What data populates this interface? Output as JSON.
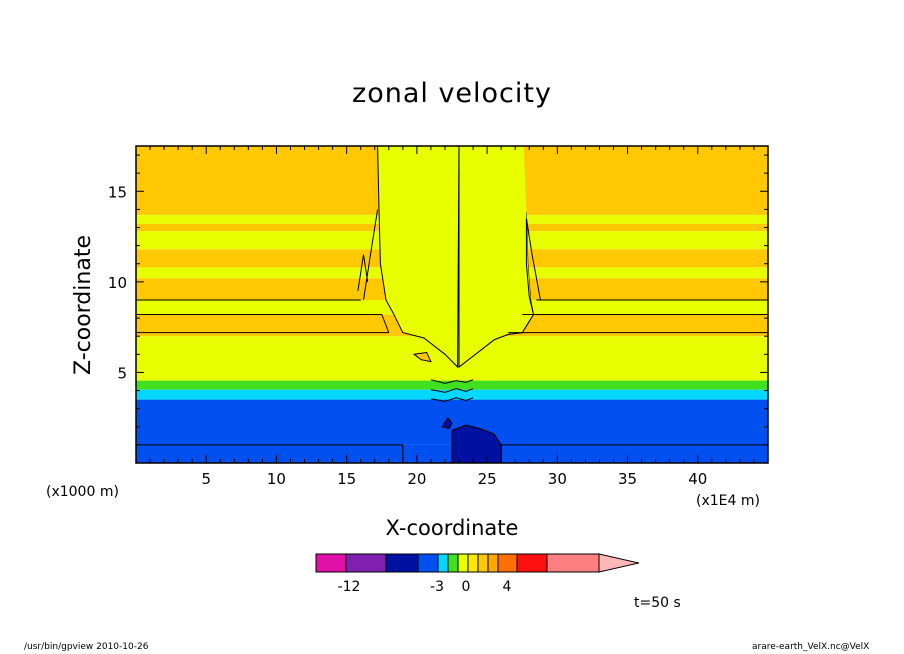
{
  "chart_data": {
    "type": "heatmap",
    "title": "zonal velocity",
    "xlabel": "X-coordinate",
    "ylabel": "Z-coordinate",
    "x_unit_left": "(x1000 m)",
    "x_unit_right": "(x1E4 m)",
    "xlim": [
      0,
      45
    ],
    "ylim": [
      0,
      17.5
    ],
    "xticks": [
      5,
      10,
      15,
      20,
      25,
      30,
      35,
      40
    ],
    "yticks": [
      5,
      10,
      15
    ],
    "colorbar": {
      "colors": [
        "#e010a8",
        "#8020b0",
        "#0010a0",
        "#0050f0",
        "#00d8ff",
        "#40e020",
        "#e8ff00",
        "#ffe800",
        "#ffc800",
        "#ffa800",
        "#ff7000",
        "#ff1010",
        "#ff8080",
        "#ffb8b8"
      ],
      "labels": [
        "-12",
        "-3",
        "0",
        "4"
      ]
    },
    "bands": [
      {
        "z": [
          0,
          1.0
        ],
        "color": "#0050f0"
      },
      {
        "z": [
          1.0,
          3.5
        ],
        "color": "#0050f0"
      },
      {
        "z": [
          3.5,
          4.05
        ],
        "color": "#00d8ff"
      },
      {
        "z": [
          4.05,
          4.55
        ],
        "color": "#40e020"
      },
      {
        "z": [
          4.55,
          7.0
        ],
        "color": "#e8ff00"
      },
      {
        "z": [
          7.0,
          8.2
        ],
        "color": "#ffc800"
      },
      {
        "z": [
          8.2,
          9.0
        ],
        "color": "#e8ff00"
      },
      {
        "z": [
          9.0,
          10.2
        ],
        "color": "#ffc800"
      },
      {
        "z": [
          10.2,
          10.8
        ],
        "color": "#e8ff00"
      },
      {
        "z": [
          10.8,
          11.8
        ],
        "color": "#ffc800"
      },
      {
        "z": [
          11.8,
          12.8
        ],
        "color": "#e8ff00"
      },
      {
        "z": [
          12.8,
          13.2
        ],
        "color": "#ffc800"
      },
      {
        "z": [
          13.2,
          13.7
        ],
        "color": "#e8ff00"
      },
      {
        "z": [
          13.7,
          17.5
        ],
        "color": "#ffc800"
      }
    ]
  },
  "time_label": "t=50 s",
  "footer_left": "/usr/bin/gpview   2010-10-26",
  "footer_right": "arare-earth_VelX.nc@VelX"
}
